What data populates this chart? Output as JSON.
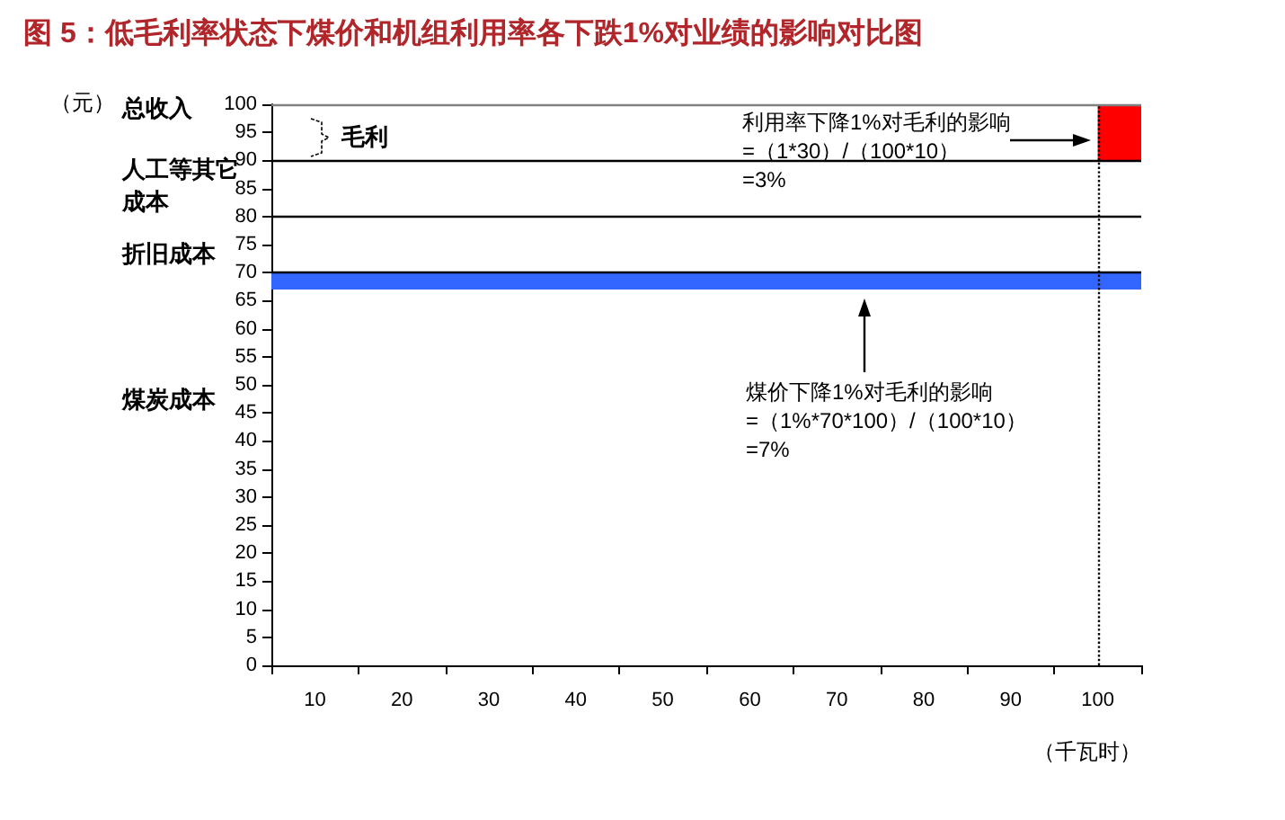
{
  "chart_data": {
    "type": "bar",
    "title": "图 5：低毛利率状态下煤价和机组利用率各下跌1%对业绩的影响对比图",
    "xlabel": "（千瓦时）",
    "categories": [
      "10",
      "20",
      "30",
      "40",
      "50",
      "60",
      "70",
      "80",
      "90",
      "100"
    ],
    "series": [
      {
        "color": "#ff0000",
        "values": [
          null,
          null,
          null,
          null,
          null,
          null,
          null,
          null,
          null,
          10
        ],
        "base": [
          null,
          null,
          null,
          null,
          null,
          null,
          null,
          null,
          null,
          90
        ]
      }
    ],
    "ylim": [
      0,
      100
    ],
    "yticks": [
      0,
      5,
      10,
      15,
      20,
      25,
      30,
      35,
      40,
      45,
      50,
      55,
      60,
      65,
      70,
      75,
      80,
      85,
      90,
      95,
      100
    ],
    "ref_lines": [
      {
        "axis": "y",
        "value": 100,
        "color": "#808080"
      },
      {
        "axis": "y",
        "value": 90,
        "color": "#000000"
      },
      {
        "axis": "y",
        "value": 80,
        "color": "#000000"
      },
      {
        "axis": "y",
        "value": 70,
        "color": "#000000"
      },
      {
        "axis": "x",
        "value": "100",
        "color": "#000000",
        "line_style": "dotted"
      }
    ],
    "bands": [
      {
        "axis": "y",
        "from": 67,
        "to": 70,
        "color": "#3366ff"
      }
    ],
    "annotations": [
      "（元）",
      "总收入",
      "毛利",
      "人工等其它成本",
      "折旧成本",
      "煤炭成本",
      "利用率下降1%对毛利的影响\n=（1*30）/（100*10）\n=3%",
      "煤价下降1%对毛利的影响\n=（1%*70*100）/（100*10）\n=7%"
    ],
    "grid": false
  }
}
